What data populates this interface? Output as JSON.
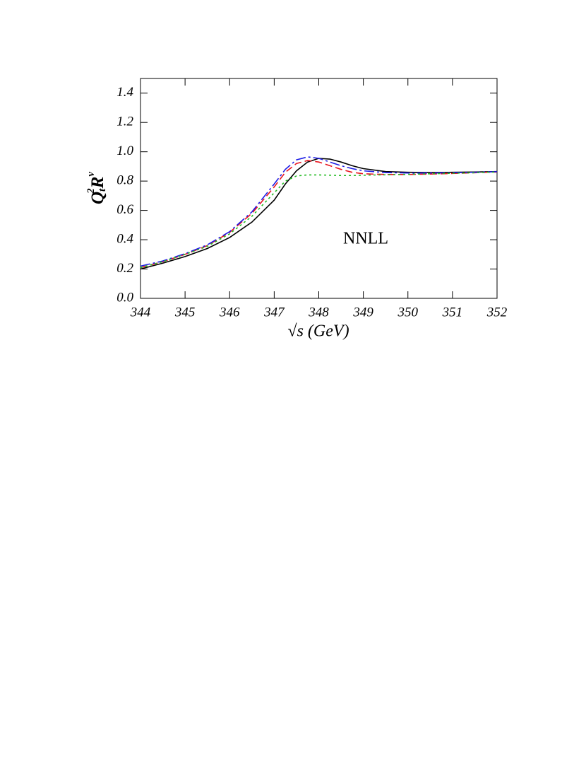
{
  "chart_data": {
    "type": "line",
    "xlabel": "√s (GeV)",
    "ylabel": [
      "Q",
      "t",
      "2",
      "R",
      "v"
    ],
    "annotation": "NNLL",
    "x": [
      344,
      344.5,
      345,
      345.5,
      346,
      346.5,
      347,
      347.25,
      347.5,
      347.75,
      348,
      348.25,
      348.5,
      348.75,
      349,
      349.5,
      350,
      350.5,
      351,
      351.5,
      352
    ],
    "series": [
      {
        "color": "#000000",
        "dash": "solid",
        "values": [
          0.2,
          0.24,
          0.285,
          0.34,
          0.415,
          0.52,
          0.67,
          0.78,
          0.87,
          0.93,
          0.955,
          0.95,
          0.93,
          0.905,
          0.885,
          0.865,
          0.86,
          0.858,
          0.86,
          0.862,
          0.865
        ]
      },
      {
        "color": "#e8141e",
        "dash": "dashed",
        "values": [
          0.21,
          0.25,
          0.3,
          0.36,
          0.45,
          0.58,
          0.76,
          0.86,
          0.92,
          0.94,
          0.93,
          0.905,
          0.88,
          0.86,
          0.85,
          0.845,
          0.845,
          0.848,
          0.852,
          0.857,
          0.862
        ]
      },
      {
        "color": "#1e1ee6",
        "dash": "dash-dot",
        "values": [
          0.22,
          0.255,
          0.305,
          0.365,
          0.455,
          0.59,
          0.78,
          0.88,
          0.945,
          0.965,
          0.955,
          0.93,
          0.905,
          0.885,
          0.87,
          0.858,
          0.855,
          0.855,
          0.857,
          0.86,
          0.864
        ]
      },
      {
        "color": "#22bb22",
        "dash": "dotted",
        "values": [
          0.21,
          0.25,
          0.3,
          0.355,
          0.44,
          0.56,
          0.72,
          0.8,
          0.835,
          0.842,
          0.842,
          0.84,
          0.838,
          0.838,
          0.84,
          0.843,
          0.846,
          0.85,
          0.853,
          0.857,
          0.862
        ]
      }
    ],
    "xlim": [
      344,
      352
    ],
    "xticks": [
      344,
      345,
      346,
      347,
      348,
      349,
      350,
      351,
      352
    ],
    "ylim": [
      0,
      1.5
    ],
    "yticks": [
      {
        "value": 0,
        "label": "0.0"
      },
      0.2,
      0.4,
      0.6,
      0.8,
      {
        "value": 1,
        "label": "1.0"
      },
      1.2,
      1.4
    ]
  }
}
